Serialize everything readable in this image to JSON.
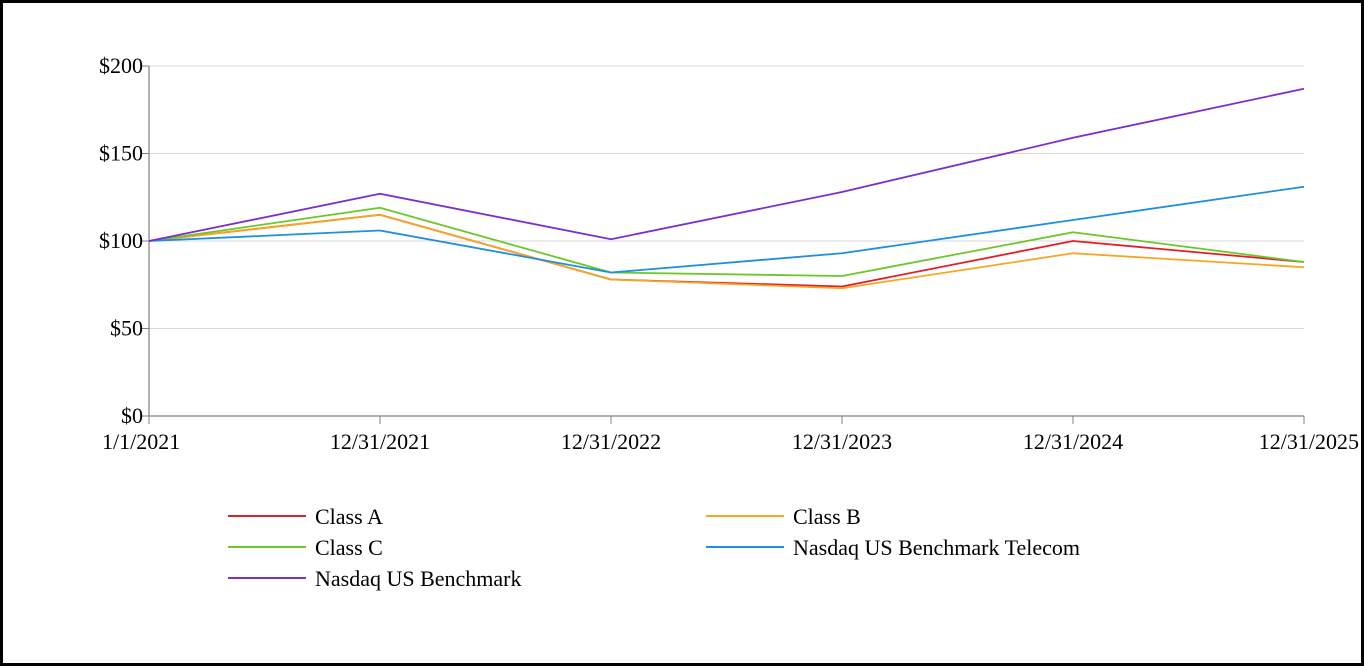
{
  "chart_data": {
    "type": "line",
    "title": "",
    "xlabel": "",
    "ylabel": "",
    "categories": [
      "1/1/2021",
      "12/31/2021",
      "12/31/2022",
      "12/31/2023",
      "12/31/2024",
      "12/31/2025"
    ],
    "ylim": [
      0,
      200
    ],
    "yticks": [
      0,
      50,
      100,
      150,
      200
    ],
    "ytick_labels": [
      "$0",
      "$50",
      "$100",
      "$150",
      "$200"
    ],
    "grid": "horizontal",
    "legend": "bottom",
    "series": [
      {
        "name": "Class A",
        "color": "#e0202a",
        "values": [
          100,
          115,
          78,
          74,
          100,
          88
        ]
      },
      {
        "name": "Class B",
        "color": "#f5a623",
        "values": [
          100,
          115,
          78,
          73,
          93,
          85
        ]
      },
      {
        "name": "Class C",
        "color": "#6cc72a",
        "values": [
          100,
          119,
          82,
          80,
          105,
          88
        ]
      },
      {
        "name": "Nasdaq US Benchmark Telecom",
        "color": "#1f8fe0",
        "values": [
          100,
          106,
          82,
          93,
          112,
          131
        ]
      },
      {
        "name": "Nasdaq US Benchmark",
        "color": "#7a2fd0",
        "values": [
          100,
          127,
          101,
          128,
          159,
          187
        ]
      }
    ]
  }
}
